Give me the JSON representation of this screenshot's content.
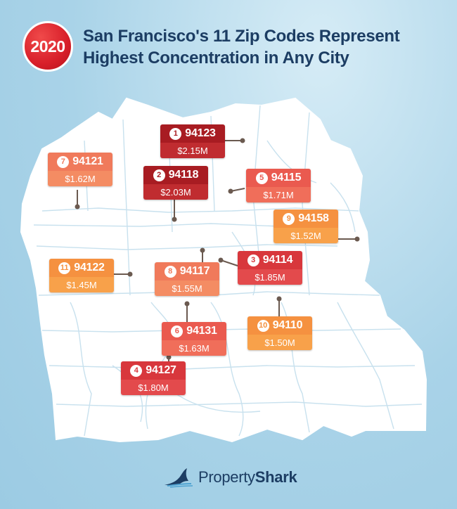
{
  "badge": {
    "year": "2020"
  },
  "title": {
    "line1": "San Francisco's 11 Zip Codes Represent",
    "line2": "Highest Concentration in Any City"
  },
  "zip_codes": [
    {
      "rank": "1",
      "zip": "94123",
      "price": "$2.15M",
      "tone": "dark"
    },
    {
      "rank": "2",
      "zip": "94118",
      "price": "$2.03M",
      "tone": "dark"
    },
    {
      "rank": "3",
      "zip": "94114",
      "price": "$1.85M",
      "tone": "red"
    },
    {
      "rank": "4",
      "zip": "94127",
      "price": "$1.80M",
      "tone": "red"
    },
    {
      "rank": "5",
      "zip": "94115",
      "price": "$1.71M",
      "tone": "coral"
    },
    {
      "rank": "6",
      "zip": "94131",
      "price": "$1.63M",
      "tone": "coral"
    },
    {
      "rank": "7",
      "zip": "94121",
      "price": "$1.62M",
      "tone": "salmon"
    },
    {
      "rank": "8",
      "zip": "94117",
      "price": "$1.55M",
      "tone": "salmon"
    },
    {
      "rank": "9",
      "zip": "94158",
      "price": "$1.52M",
      "tone": "orange"
    },
    {
      "rank": "10",
      "zip": "94110",
      "price": "$1.50M",
      "tone": "orange"
    },
    {
      "rank": "11",
      "zip": "94122",
      "price": "$1.45M",
      "tone": "orange"
    }
  ],
  "logo": {
    "part1": "Property",
    "part2": "Shark"
  },
  "colors": {
    "background": "#a9d3e8",
    "land": "#ffffff",
    "title": "#1c3d63",
    "badge": "#d81f2a"
  }
}
